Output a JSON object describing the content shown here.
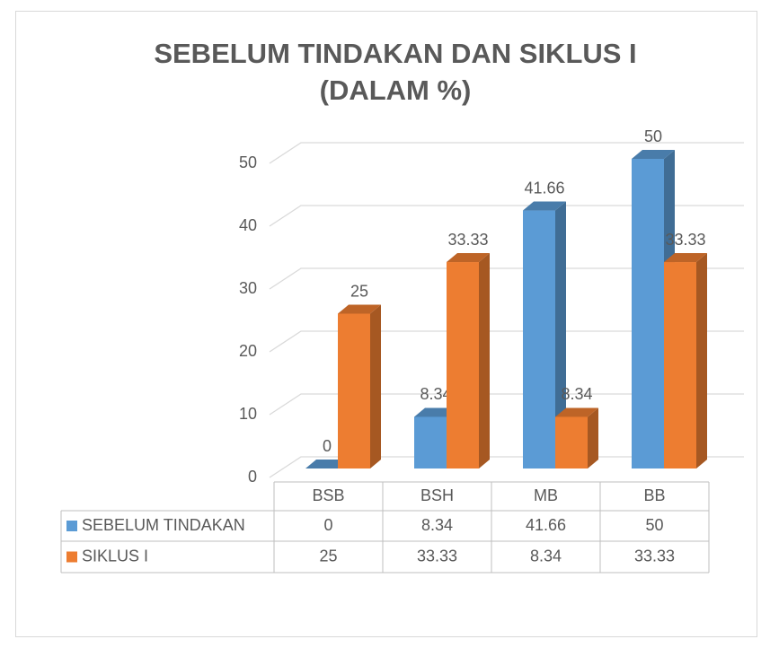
{
  "chart_data": {
    "type": "bar3d",
    "title": [
      "SEBELUM TINDAKAN DAN SIKLUS I",
      "(DALAM %)"
    ],
    "categories": [
      "BSB",
      "BSH",
      "MB",
      "BB"
    ],
    "series": [
      {
        "name": "SEBELUM TINDAKAN",
        "color": "#5b9bd5",
        "values": [
          0,
          8.34,
          41.66,
          50
        ]
      },
      {
        "name": "SIKLUS I",
        "color": "#ed7d31",
        "values": [
          25,
          33.33,
          8.34,
          33.33
        ]
      }
    ],
    "ylim": [
      0,
      50
    ],
    "yticks": [
      0,
      10,
      20,
      30,
      40,
      50
    ],
    "grid": true,
    "data_table": true
  }
}
